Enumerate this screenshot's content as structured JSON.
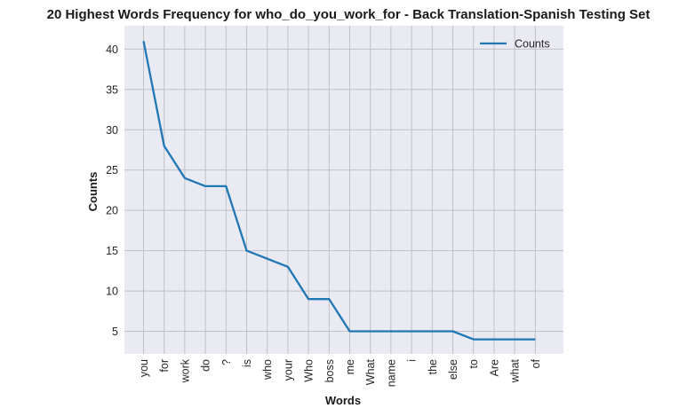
{
  "chart_data": {
    "type": "line",
    "title": "20 Highest Words Frequency for who_do_you_work_for - Back Translation-Spanish Testing Set",
    "xlabel": "Words",
    "ylabel": "Counts",
    "categories": [
      "you",
      "for",
      "work",
      "do",
      "?",
      "is",
      "who",
      "your",
      "Who",
      "boss",
      "me",
      "What",
      "name",
      "i",
      "the",
      "else",
      "to",
      "Are",
      "what",
      "of"
    ],
    "series": [
      {
        "name": "Counts",
        "values": [
          41,
          28,
          24,
          23,
          23,
          15,
          14,
          13,
          9,
          9,
          5,
          5,
          5,
          5,
          5,
          5,
          4,
          4,
          4,
          4
        ],
        "color": "#1f77b4"
      }
    ],
    "ylim": [
      2.2,
      42.9
    ],
    "yticks": [
      5,
      10,
      15,
      20,
      25,
      30,
      35,
      40
    ],
    "grid": true,
    "legend_position": "top-right",
    "background_color": "#eaeaf2",
    "grid_color": "#c0c0c8"
  }
}
